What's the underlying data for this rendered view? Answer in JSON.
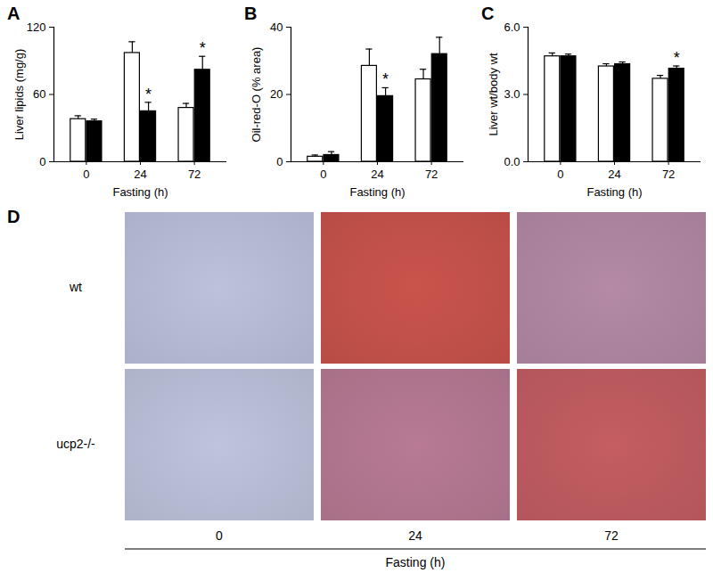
{
  "chart_data": [
    {
      "type": "bar",
      "title": "A",
      "xlabel": "Fasting (h)",
      "ylabel": "Liver lipids (mg/g)",
      "categories": [
        "0",
        "24",
        "72"
      ],
      "series": [
        {
          "color": "#ffffff",
          "values": [
            38,
            97,
            48
          ],
          "errors": [
            3,
            10,
            4
          ]
        },
        {
          "color": "#000000",
          "values": [
            36,
            45,
            82
          ],
          "errors": [
            2,
            8,
            12
          ]
        }
      ],
      "ylim": [
        0,
        120
      ],
      "yticks": [
        0,
        60,
        120
      ],
      "annotations": [
        {
          "category": "24",
          "series": 1,
          "text": "*"
        },
        {
          "category": "72",
          "series": 1,
          "text": "*"
        }
      ]
    },
    {
      "type": "bar",
      "title": "B",
      "xlabel": "Fasting (h)",
      "ylabel": "Oil-red-O (% area)",
      "categories": [
        "0",
        "24",
        "72"
      ],
      "series": [
        {
          "color": "#ffffff",
          "values": [
            1.5,
            28.5,
            24.5
          ],
          "errors": [
            0.5,
            5,
            3
          ]
        },
        {
          "color": "#000000",
          "values": [
            2,
            19.5,
            32
          ],
          "errors": [
            1,
            2.5,
            5
          ]
        }
      ],
      "ylim": [
        0,
        40
      ],
      "yticks": [
        0,
        20,
        40
      ],
      "annotations": [
        {
          "category": "24",
          "series": 1,
          "text": "*"
        }
      ]
    },
    {
      "type": "bar",
      "title": "C",
      "xlabel": "Fasting (h)",
      "ylabel": "Liver wt/body wt",
      "categories": [
        "0",
        "24",
        "72"
      ],
      "series": [
        {
          "color": "#ffffff",
          "values": [
            4.7,
            4.25,
            3.7
          ],
          "errors": [
            0.15,
            0.12,
            0.15
          ]
        },
        {
          "color": "#000000",
          "values": [
            4.7,
            4.35,
            4.15
          ],
          "errors": [
            0.1,
            0.1,
            0.12
          ]
        }
      ],
      "ylim": [
        0,
        6
      ],
      "yticks": [
        0,
        3,
        6
      ],
      "annotations": [
        {
          "category": "72",
          "series": 1,
          "text": "*"
        }
      ]
    }
  ],
  "panel_d": {
    "title": "D",
    "rows": [
      "wt",
      "ucp2-/-"
    ],
    "columns": [
      "0",
      "24",
      "72"
    ],
    "xlabel": "Fasting (h)"
  }
}
